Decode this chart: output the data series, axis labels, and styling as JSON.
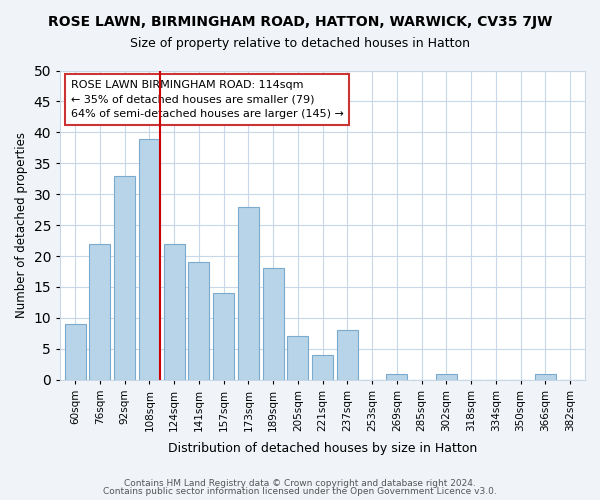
{
  "title": "ROSE LAWN, BIRMINGHAM ROAD, HATTON, WARWICK, CV35 7JW",
  "subtitle": "Size of property relative to detached houses in Hatton",
  "xlabel": "Distribution of detached houses by size in Hatton",
  "ylabel": "Number of detached properties",
  "bar_color": "#b8d4e8",
  "bar_edge_color": "#7aabce",
  "bins": [
    "60sqm",
    "76sqm",
    "92sqm",
    "108sqm",
    "124sqm",
    "141sqm",
    "157sqm",
    "173sqm",
    "189sqm",
    "205sqm",
    "221sqm",
    "237sqm",
    "253sqm",
    "269sqm",
    "285sqm",
    "302sqm",
    "318sqm",
    "334sqm",
    "350sqm",
    "366sqm",
    "382sqm"
  ],
  "values": [
    9,
    22,
    33,
    39,
    22,
    19,
    14,
    28,
    18,
    7,
    4,
    8,
    0,
    1,
    0,
    1,
    0,
    0,
    0,
    1,
    0
  ],
  "ylim": [
    0,
    50
  ],
  "yticks": [
    0,
    5,
    10,
    15,
    20,
    25,
    30,
    35,
    40,
    45,
    50
  ],
  "ref_line_x": 3,
  "ref_line_color": "#cc0000",
  "annotation_title": "ROSE LAWN BIRMINGHAM ROAD: 114sqm",
  "annotation_line1": "← 35% of detached houses are smaller (79)",
  "annotation_line2": "64% of semi-detached houses are larger (145) →",
  "footer_line1": "Contains HM Land Registry data © Crown copyright and database right 2024.",
  "footer_line2": "Contains public sector information licensed under the Open Government Licence v3.0.",
  "background_color": "#f0f4f8",
  "plot_bg_color": "#ffffff",
  "grid_color": "#c8d8e8"
}
